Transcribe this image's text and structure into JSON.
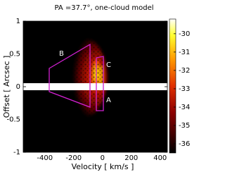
{
  "chart_data": {
    "type": "heatmap",
    "title": "PA =37.7°, one-cloud model",
    "xlabel": "Velocity [ km/s ]",
    "ylabel": "Offset [ Arcsec ]",
    "xlim": [
      -550,
      450
    ],
    "xticks": [
      -400,
      -200,
      0,
      200,
      400
    ],
    "ylim": [
      -1,
      1
    ],
    "yticks": [
      -1,
      -0.5,
      0,
      0.5,
      1
    ],
    "colormap": "hot",
    "clim": [
      -36.5,
      -29.2
    ],
    "cticks": [
      -30,
      -31,
      -32,
      -33,
      -34,
      -35,
      -36
    ],
    "annotations": [
      "A",
      "B",
      "C"
    ],
    "outline_color": "#d020d0"
  }
}
